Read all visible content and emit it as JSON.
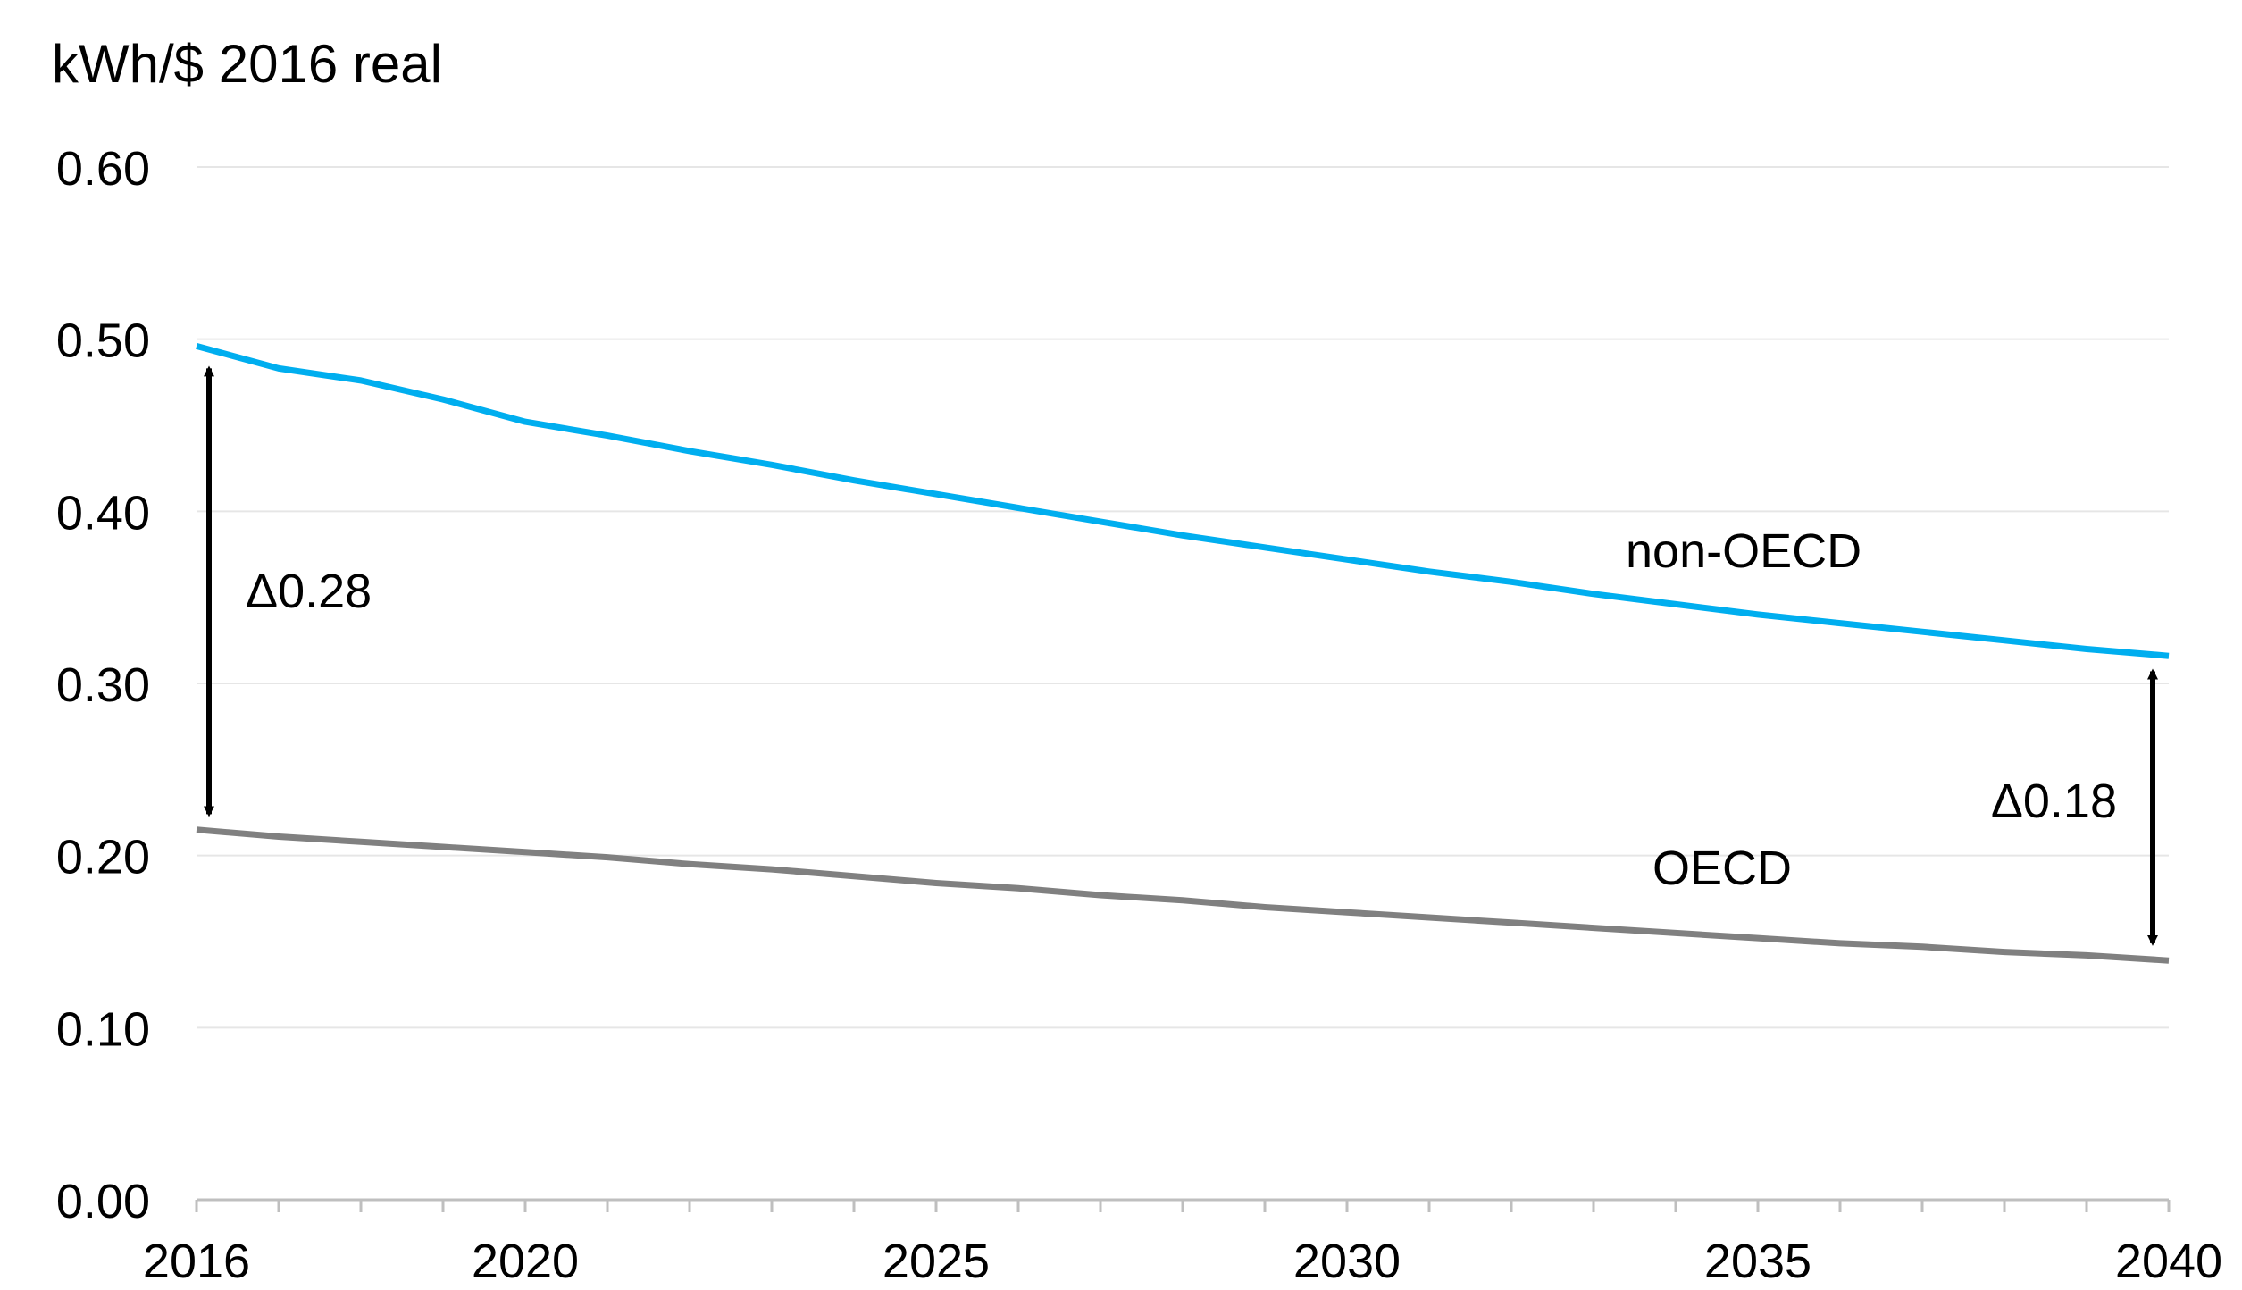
{
  "colors": {
    "non_oecd": "#00AEEF",
    "oecd": "#808080",
    "grid": "#E6E6E6",
    "axis": "#BFBFBF",
    "arrow": "#000000"
  },
  "chart_data": {
    "type": "line",
    "title": "",
    "ylabel": "kWh/$ 2016 real",
    "xlabel": "",
    "xlim": [
      2016,
      2040
    ],
    "ylim": [
      0,
      0.6
    ],
    "grid": true,
    "x_ticks": [
      "2016",
      "2020",
      "2025",
      "2030",
      "2035",
      "2040"
    ],
    "y_ticks": [
      "0.00",
      "0.10",
      "0.20",
      "0.30",
      "0.40",
      "0.50",
      "0.60"
    ],
    "x": [
      2016,
      2017,
      2018,
      2019,
      2020,
      2021,
      2022,
      2023,
      2024,
      2025,
      2026,
      2027,
      2028,
      2029,
      2030,
      2031,
      2032,
      2033,
      2034,
      2035,
      2036,
      2037,
      2038,
      2039,
      2040
    ],
    "series": [
      {
        "name": "non-OECD",
        "label": "non-OECD",
        "values": [
          0.496,
          0.483,
          0.476,
          0.465,
          0.452,
          0.444,
          0.435,
          0.427,
          0.418,
          0.41,
          0.402,
          0.394,
          0.386,
          0.379,
          0.372,
          0.365,
          0.359,
          0.352,
          0.346,
          0.34,
          0.335,
          0.33,
          0.325,
          0.32,
          0.316
        ]
      },
      {
        "name": "OECD",
        "label": "OECD",
        "values": [
          0.215,
          0.211,
          0.208,
          0.205,
          0.202,
          0.199,
          0.195,
          0.192,
          0.188,
          0.184,
          0.181,
          0.177,
          0.174,
          0.17,
          0.167,
          0.164,
          0.161,
          0.158,
          0.155,
          0.152,
          0.149,
          0.147,
          0.144,
          0.142,
          0.139
        ]
      }
    ],
    "annotations": [
      {
        "text": "Δ0.28",
        "x": 2016,
        "from": 0.483,
        "to": 0.224
      },
      {
        "text": "Δ0.18",
        "x": 2040,
        "from": 0.307,
        "to": 0.149
      }
    ]
  }
}
